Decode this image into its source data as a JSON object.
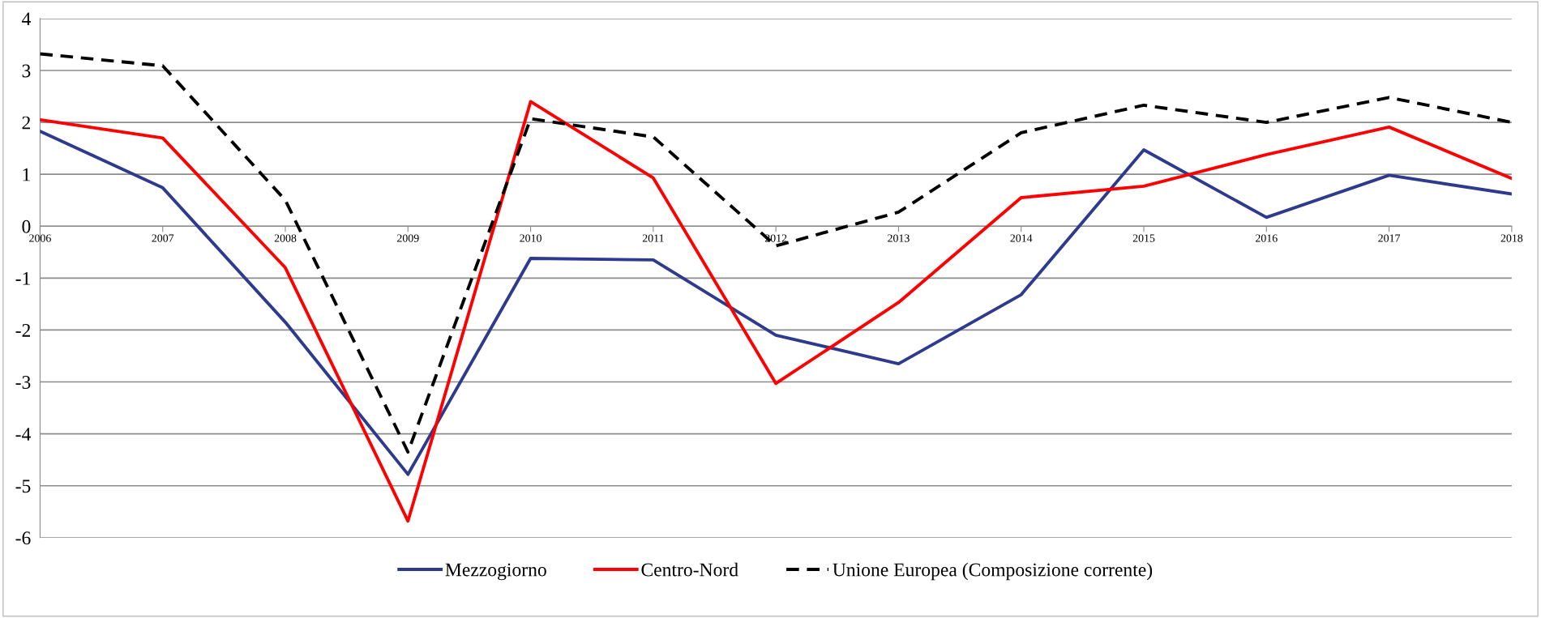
{
  "chart_data": {
    "type": "line",
    "categories": [
      "2006",
      "2007",
      "2008",
      "2009",
      "2010",
      "2011",
      "2012",
      "2013",
      "2014",
      "2015",
      "2016",
      "2017",
      "2018"
    ],
    "series": [
      {
        "name": "Mezzogiorno",
        "color": "#2e3a8c",
        "line_style": "solid",
        "values": [
          1.83,
          0.74,
          -1.85,
          -4.78,
          -0.62,
          -0.65,
          -2.1,
          -2.65,
          -1.32,
          1.47,
          0.17,
          0.98,
          0.62
        ]
      },
      {
        "name": "Centro-Nord",
        "color": "#ff0000",
        "line_style": "solid",
        "values": [
          2.05,
          1.7,
          -0.8,
          -5.68,
          2.4,
          0.93,
          -3.03,
          -1.47,
          0.55,
          0.77,
          1.38,
          1.91,
          0.92
        ]
      },
      {
        "name": "Unione Europea (Composizione corrente)",
        "color": "#000000",
        "line_style": "dashed",
        "values": [
          3.32,
          3.09,
          0.5,
          -4.35,
          2.07,
          1.72,
          -0.38,
          0.27,
          1.8,
          2.33,
          2.0,
          2.48,
          2.0
        ]
      }
    ],
    "ylim": [
      -6,
      4
    ],
    "yticks": [
      -6,
      -5,
      -4,
      -3,
      -2,
      -1,
      0,
      1,
      2,
      3,
      4
    ],
    "grid": "y",
    "legend": "bottom",
    "marker": "none"
  }
}
